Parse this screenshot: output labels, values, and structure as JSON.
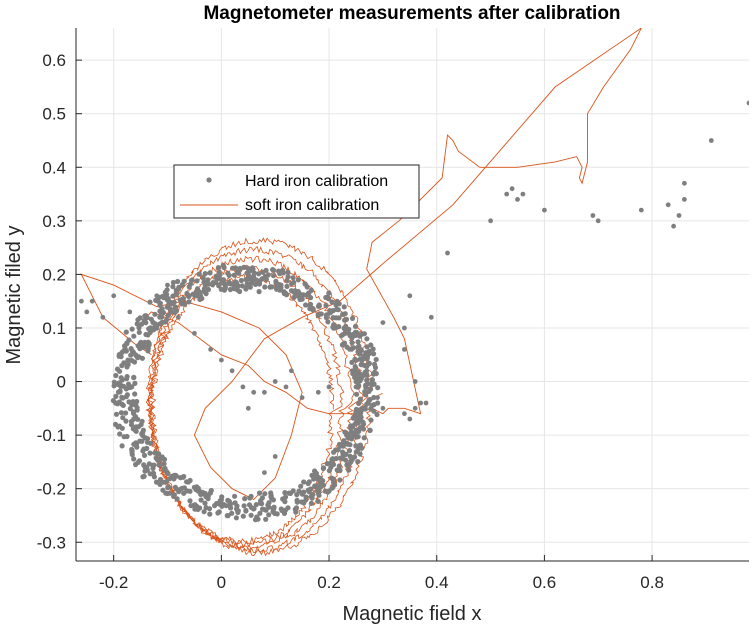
{
  "chart_data": {
    "type": "scatter",
    "title": "Magnetometer measurements after calibration",
    "xlabel": "Magnetic field x",
    "ylabel": "Magnetic filed y",
    "xlim": [
      -0.27,
      0.98
    ],
    "ylim": [
      -0.335,
      0.66
    ],
    "xticks": [
      -0.2,
      0,
      0.2,
      0.4,
      0.6,
      0.8
    ],
    "yticks": [
      -0.3,
      -0.2,
      -0.1,
      0,
      0.1,
      0.2,
      0.3,
      0.4,
      0.5,
      0.6
    ],
    "xtick_labels": [
      "-0.2",
      "0",
      "0.2",
      "0.4",
      "0.6",
      "0.8"
    ],
    "ytick_labels": [
      "-0.3",
      "-0.2",
      "-0.1",
      "0",
      "0.1",
      "0.2",
      "0.3",
      "0.4",
      "0.5",
      "0.6"
    ],
    "grid": true,
    "legend_position": "upper-left-center",
    "colors": {
      "hard": "#7f7f7f",
      "soft": "#d95319"
    },
    "series": [
      {
        "name": "Hard iron calibration",
        "kind": "scatter",
        "ellipse": {
          "cx": 0.045,
          "cy": -0.02,
          "rx": 0.225,
          "ry": 0.215,
          "count": 900
        },
        "outliers": [
          [
            -0.26,
            0.15
          ],
          [
            -0.24,
            0.15
          ],
          [
            -0.25,
            0.13
          ],
          [
            -0.22,
            0.12
          ],
          [
            -0.2,
            0.16
          ],
          [
            -0.17,
            0.13
          ],
          [
            -0.12,
            0.16
          ],
          [
            -0.1,
            0.18
          ],
          [
            -0.08,
            0.12
          ],
          [
            -0.05,
            0.09
          ],
          [
            -0.02,
            0.06
          ],
          [
            0.0,
            0.04
          ],
          [
            0.02,
            0.02
          ],
          [
            0.04,
            -0.01
          ],
          [
            0.06,
            -0.02
          ],
          [
            0.08,
            -0.02
          ],
          [
            0.1,
            0.0
          ],
          [
            0.12,
            -0.01
          ],
          [
            0.15,
            -0.03
          ],
          [
            0.18,
            -0.02
          ],
          [
            0.2,
            -0.01
          ],
          [
            0.25,
            -0.01
          ],
          [
            0.27,
            0.02
          ],
          [
            0.29,
            -0.03
          ],
          [
            0.3,
            -0.05
          ],
          [
            0.34,
            -0.06
          ],
          [
            0.35,
            -0.07
          ],
          [
            0.36,
            -0.05
          ],
          [
            0.37,
            -0.04
          ],
          [
            0.38,
            -0.04
          ],
          [
            0.34,
            0.06
          ],
          [
            0.35,
            0.16
          ],
          [
            0.34,
            0.1
          ],
          [
            0.39,
            0.12
          ],
          [
            0.36,
            0.0
          ],
          [
            0.3,
            0.11
          ],
          [
            0.42,
            0.24
          ],
          [
            0.5,
            0.3
          ],
          [
            0.53,
            0.35
          ],
          [
            0.54,
            0.36
          ],
          [
            0.55,
            0.34
          ],
          [
            0.56,
            0.35
          ],
          [
            0.6,
            0.32
          ],
          [
            0.69,
            0.31
          ],
          [
            0.7,
            0.3
          ],
          [
            0.78,
            0.32
          ],
          [
            0.83,
            0.33
          ],
          [
            0.84,
            0.29
          ],
          [
            0.85,
            0.31
          ],
          [
            0.86,
            0.34
          ],
          [
            0.86,
            0.37
          ],
          [
            0.91,
            0.45
          ],
          [
            0.98,
            0.52
          ],
          [
            0.13,
            0.02
          ],
          [
            0.08,
            -0.17
          ],
          [
            0.1,
            -0.14
          ],
          [
            0.05,
            -0.05
          ]
        ]
      },
      {
        "name": "soft iron calibration",
        "kind": "line",
        "ellipse": {
          "cx": 0.055,
          "cy": -0.04,
          "rx": 0.19,
          "ry": 0.28,
          "loops": 5
        },
        "excursion": [
          [
            -0.14,
            0.12
          ],
          [
            -0.13,
            0.13
          ],
          [
            -0.08,
            0.11
          ],
          [
            0.0,
            0.05
          ],
          [
            0.05,
            0.03
          ],
          [
            0.08,
            0.0
          ],
          [
            0.12,
            -0.02
          ],
          [
            0.16,
            -0.05
          ],
          [
            0.2,
            -0.06
          ],
          [
            0.25,
            -0.06
          ],
          [
            0.28,
            -0.05
          ],
          [
            0.3,
            -0.06
          ],
          [
            0.31,
            -0.05
          ],
          [
            0.34,
            -0.05
          ],
          [
            0.37,
            -0.06
          ],
          [
            0.34,
            0.08
          ],
          [
            0.32,
            0.12
          ],
          [
            0.27,
            0.21
          ],
          [
            0.28,
            0.26
          ],
          [
            0.33,
            0.3
          ],
          [
            0.41,
            0.38
          ],
          [
            0.42,
            0.46
          ],
          [
            0.43,
            0.45
          ],
          [
            0.44,
            0.43
          ],
          [
            0.48,
            0.4
          ],
          [
            0.55,
            0.4
          ],
          [
            0.62,
            0.41
          ],
          [
            0.66,
            0.42
          ],
          [
            0.67,
            0.4
          ],
          [
            0.665,
            0.38
          ],
          [
            0.67,
            0.37
          ],
          [
            0.68,
            0.41
          ],
          [
            0.68,
            0.5
          ],
          [
            0.71,
            0.55
          ],
          [
            0.76,
            0.62
          ],
          [
            0.78,
            0.66
          ],
          [
            0.62,
            0.55
          ],
          [
            0.43,
            0.33
          ],
          [
            0.3,
            0.22
          ],
          [
            0.22,
            0.15
          ],
          [
            0.15,
            0.12
          ],
          [
            0.08,
            0.08
          ],
          [
            0.02,
            0.0
          ],
          [
            -0.03,
            -0.05
          ],
          [
            -0.05,
            -0.1
          ],
          [
            -0.02,
            -0.16
          ],
          [
            0.02,
            -0.2
          ],
          [
            0.06,
            -0.22
          ],
          [
            0.1,
            -0.18
          ],
          [
            0.13,
            -0.1
          ],
          [
            0.15,
            -0.02
          ],
          [
            0.12,
            0.05
          ],
          [
            0.07,
            0.1
          ],
          [
            0.0,
            0.13
          ],
          [
            -0.07,
            0.15
          ],
          [
            -0.12,
            0.14
          ],
          [
            -0.2,
            0.18
          ],
          [
            -0.26,
            0.2
          ],
          [
            -0.22,
            0.12
          ],
          [
            -0.16,
            0.07
          ],
          [
            -0.13,
            0.05
          ]
        ]
      }
    ]
  }
}
